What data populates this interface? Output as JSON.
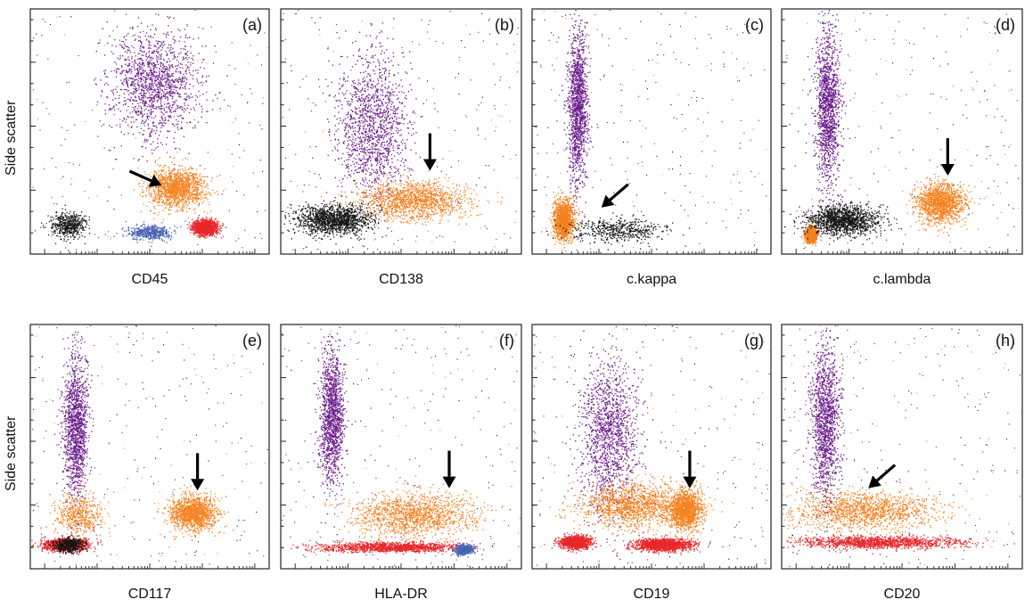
{
  "figure": {
    "ylabel": "Side scatter",
    "colors": {
      "purple": "#6a1b8a",
      "orange": "#f58220",
      "red": "#e8262a",
      "black": "#141414",
      "blue": "#4a63b5",
      "axis": "#222222",
      "arrow": "#000000"
    }
  },
  "chart_data": [
    {
      "type": "scatter",
      "panel_label": "(a)",
      "xlabel": "CD45",
      "ylabel": "Side scatter",
      "xlim": [
        0,
        1
      ],
      "ylim": [
        0,
        1
      ],
      "populations": [
        {
          "color": "purple",
          "center": [
            0.52,
            0.7
          ],
          "spread": [
            0.18,
            0.22
          ],
          "density": "high"
        },
        {
          "color": "orange",
          "center": [
            0.61,
            0.27
          ],
          "spread": [
            0.12,
            0.08
          ],
          "density": "high"
        },
        {
          "color": "red",
          "center": [
            0.73,
            0.11
          ],
          "spread": [
            0.05,
            0.03
          ],
          "density": "high"
        },
        {
          "color": "blue",
          "center": [
            0.5,
            0.09
          ],
          "spread": [
            0.09,
            0.03
          ],
          "density": "medium"
        },
        {
          "color": "black",
          "center": [
            0.16,
            0.12
          ],
          "spread": [
            0.07,
            0.05
          ],
          "density": "medium"
        }
      ],
      "arrow": {
        "direction": "right-down",
        "target": [
          0.55,
          0.28
        ]
      }
    },
    {
      "type": "scatter",
      "panel_label": "(b)",
      "xlabel": "CD138",
      "ylabel": "",
      "xlim": [
        0,
        1
      ],
      "ylim": [
        0,
        1
      ],
      "populations": [
        {
          "color": "purple",
          "center": [
            0.38,
            0.52
          ],
          "spread": [
            0.15,
            0.28
          ],
          "density": "high"
        },
        {
          "color": "orange",
          "center": [
            0.55,
            0.22
          ],
          "spread": [
            0.22,
            0.08
          ],
          "density": "high"
        },
        {
          "color": "black",
          "center": [
            0.22,
            0.14
          ],
          "spread": [
            0.15,
            0.06
          ],
          "density": "high"
        }
      ],
      "arrow": {
        "direction": "down",
        "target": [
          0.62,
          0.34
        ]
      }
    },
    {
      "type": "scatter",
      "panel_label": "(c)",
      "xlabel": "c.kappa",
      "ylabel": "",
      "xlim": [
        0,
        1
      ],
      "ylim": [
        0,
        1
      ],
      "populations": [
        {
          "color": "purple",
          "center": [
            0.19,
            0.6
          ],
          "spread": [
            0.04,
            0.32
          ],
          "density": "high"
        },
        {
          "color": "orange",
          "center": [
            0.13,
            0.14
          ],
          "spread": [
            0.04,
            0.08
          ],
          "density": "high"
        },
        {
          "color": "black",
          "center": [
            0.35,
            0.1
          ],
          "spread": [
            0.2,
            0.05
          ],
          "density": "medium"
        }
      ],
      "arrow": {
        "direction": "left-down",
        "target": [
          0.29,
          0.19
        ]
      }
    },
    {
      "type": "scatter",
      "panel_label": "(d)",
      "xlabel": "c.lambda",
      "ylabel": "",
      "xlim": [
        0,
        1
      ],
      "ylim": [
        0,
        1
      ],
      "populations": [
        {
          "color": "purple",
          "center": [
            0.19,
            0.6
          ],
          "spread": [
            0.05,
            0.32
          ],
          "density": "high"
        },
        {
          "color": "orange",
          "center": [
            0.66,
            0.21
          ],
          "spread": [
            0.1,
            0.08
          ],
          "density": "high"
        },
        {
          "color": "orange",
          "center": [
            0.12,
            0.08
          ],
          "spread": [
            0.02,
            0.03
          ],
          "density": "high"
        },
        {
          "color": "black",
          "center": [
            0.25,
            0.14
          ],
          "spread": [
            0.15,
            0.06
          ],
          "density": "high"
        }
      ],
      "arrow": {
        "direction": "down",
        "target": [
          0.69,
          0.32
        ]
      }
    },
    {
      "type": "scatter",
      "panel_label": "(e)",
      "xlabel": "CD117",
      "ylabel": "Side scatter",
      "xlim": [
        0,
        1
      ],
      "ylim": [
        0,
        1
      ],
      "populations": [
        {
          "color": "purple",
          "center": [
            0.19,
            0.58
          ],
          "spread": [
            0.05,
            0.3
          ],
          "density": "high"
        },
        {
          "color": "orange",
          "center": [
            0.68,
            0.23
          ],
          "spread": [
            0.1,
            0.07
          ],
          "density": "high"
        },
        {
          "color": "orange",
          "center": [
            0.2,
            0.22
          ],
          "spread": [
            0.1,
            0.08
          ],
          "density": "medium"
        },
        {
          "color": "red",
          "center": [
            0.15,
            0.1
          ],
          "spread": [
            0.09,
            0.025
          ],
          "density": "high"
        },
        {
          "color": "black",
          "center": [
            0.16,
            0.1
          ],
          "spread": [
            0.06,
            0.03
          ],
          "density": "medium"
        }
      ],
      "arrow": {
        "direction": "down",
        "target": [
          0.7,
          0.32
        ]
      }
    },
    {
      "type": "scatter",
      "panel_label": "(f)",
      "xlabel": "HLA-DR",
      "ylabel": "",
      "xlim": [
        0,
        1
      ],
      "ylim": [
        0,
        1
      ],
      "populations": [
        {
          "color": "purple",
          "center": [
            0.21,
            0.63
          ],
          "spread": [
            0.05,
            0.28
          ],
          "density": "high"
        },
        {
          "color": "orange",
          "center": [
            0.55,
            0.22
          ],
          "spread": [
            0.25,
            0.09
          ],
          "density": "high"
        },
        {
          "color": "red",
          "center": [
            0.45,
            0.09
          ],
          "spread": [
            0.3,
            0.02
          ],
          "density": "high"
        },
        {
          "color": "blue",
          "center": [
            0.76,
            0.08
          ],
          "spread": [
            0.04,
            0.02
          ],
          "density": "medium"
        }
      ],
      "arrow": {
        "direction": "down",
        "target": [
          0.7,
          0.33
        ]
      }
    },
    {
      "type": "scatter",
      "panel_label": "(g)",
      "xlabel": "CD19",
      "ylabel": "",
      "xlim": [
        0,
        1
      ],
      "ylim": [
        0,
        1
      ],
      "populations": [
        {
          "color": "purple",
          "center": [
            0.32,
            0.55
          ],
          "spread": [
            0.12,
            0.3
          ],
          "density": "high"
        },
        {
          "color": "orange",
          "center": [
            0.42,
            0.26
          ],
          "spread": [
            0.22,
            0.09
          ],
          "density": "high"
        },
        {
          "color": "orange",
          "center": [
            0.64,
            0.24
          ],
          "spread": [
            0.07,
            0.08
          ],
          "density": "high"
        },
        {
          "color": "red",
          "center": [
            0.18,
            0.11
          ],
          "spread": [
            0.06,
            0.025
          ],
          "density": "high"
        },
        {
          "color": "red",
          "center": [
            0.55,
            0.1
          ],
          "spread": [
            0.12,
            0.025
          ],
          "density": "high"
        }
      ],
      "arrow": {
        "direction": "down",
        "target": [
          0.66,
          0.33
        ]
      }
    },
    {
      "type": "scatter",
      "panel_label": "(h)",
      "xlabel": "CD20",
      "ylabel": "",
      "xlim": [
        0,
        1
      ],
      "ylim": [
        0,
        1
      ],
      "populations": [
        {
          "color": "purple",
          "center": [
            0.18,
            0.6
          ],
          "spread": [
            0.06,
            0.32
          ],
          "density": "high"
        },
        {
          "color": "orange",
          "center": [
            0.35,
            0.24
          ],
          "spread": [
            0.3,
            0.08
          ],
          "density": "high"
        },
        {
          "color": "red",
          "center": [
            0.4,
            0.11
          ],
          "spread": [
            0.34,
            0.025
          ],
          "density": "high"
        }
      ],
      "arrow": {
        "direction": "left-down",
        "target": [
          0.36,
          0.33
        ]
      }
    }
  ]
}
